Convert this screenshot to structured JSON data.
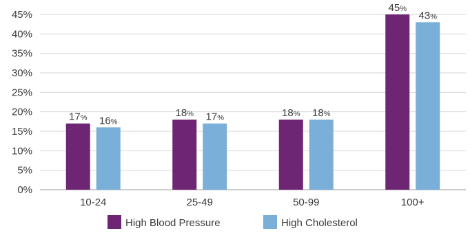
{
  "chart_data": {
    "type": "bar",
    "categories": [
      "10-24",
      "25-49",
      "50-99",
      "100+"
    ],
    "series": [
      {
        "name": "High Blood Pressure",
        "values": [
          17,
          18,
          18,
          45
        ],
        "color": "#6e2574"
      },
      {
        "name": "High Cholesterol",
        "values": [
          16,
          17,
          18,
          43
        ],
        "color": "#79afd8"
      }
    ],
    "value_suffix": "%",
    "y_ticks": [
      "0%",
      "5%",
      "10%",
      "15%",
      "20%",
      "25%",
      "30%",
      "35%",
      "40%",
      "45%"
    ],
    "ylim": [
      0,
      45
    ],
    "grid": true,
    "legend_position": "bottom",
    "title": "",
    "xlabel": "",
    "ylabel": ""
  }
}
